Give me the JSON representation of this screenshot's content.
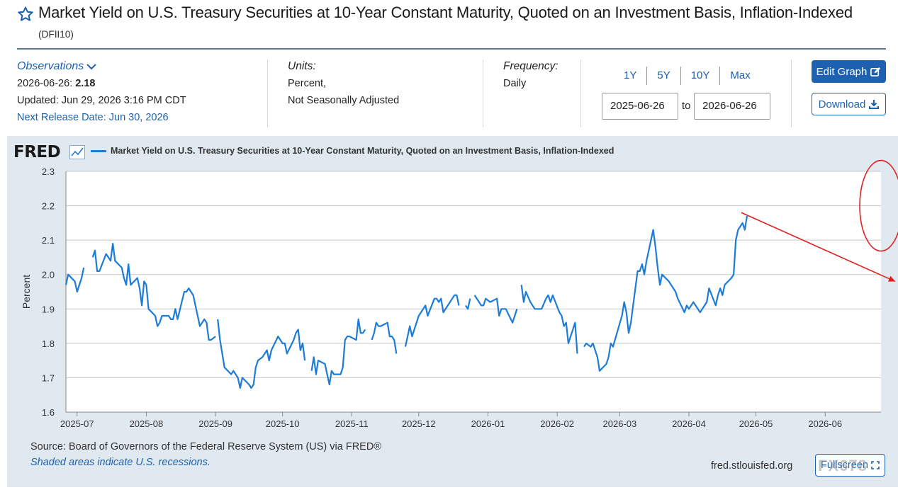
{
  "header": {
    "title": "Market Yield on U.S. Treasury Securities at 10-Year Constant Maturity, Quoted on an Investment Basis, Inflation-Indexed",
    "series_id": "(DFII10)"
  },
  "observations": {
    "label": "Observations",
    "date": "2026-06-26:",
    "value": "2.18",
    "updated": "Updated: Jun 29, 2026 3:16 PM CDT",
    "next_release": "Next Release Date: Jun 30, 2026"
  },
  "units": {
    "label": "Units:",
    "line1": "Percent,",
    "line2": "Not Seasonally Adjusted"
  },
  "frequency": {
    "label": "Frequency:",
    "value": "Daily"
  },
  "ranges": [
    "1Y",
    "5Y",
    "10Y",
    "Max"
  ],
  "date_range": {
    "start": "2025-06-26",
    "end": "2026-06-26",
    "separator": "to"
  },
  "buttons": {
    "edit_graph": "Edit Graph",
    "download": "Download",
    "fullscreen": "Fullscreen"
  },
  "graph": {
    "logo": "FRED",
    "legend": "Market Yield on U.S. Treasury Securities at 10-Year Constant Maturity, Quoted on an Investment Basis, Inflation-Indexed",
    "source": "Source: Board of Governors of the Federal Reserve System (US) via FRED®",
    "shaded_note": "Shaded areas indicate U.S. recessions.",
    "site": "fred.stlouisfed.org"
  },
  "watermark": "FX678",
  "colors": {
    "accent": "#1d61b0",
    "series": "#1d7cd6",
    "annotation": "#e02020",
    "panel": "#e1e9f0"
  },
  "chart_data": {
    "type": "line",
    "ylabel": "Percent",
    "ylim": [
      1.6,
      2.3
    ],
    "yticks": [
      "1.6",
      "1.7",
      "1.8",
      "1.9",
      "2.0",
      "2.1",
      "2.2",
      "2.3"
    ],
    "xlim": [
      "2025-06-26",
      "2026-06-26"
    ],
    "xticks": [
      "2025-07",
      "2025-08",
      "2025-09",
      "2025-10",
      "2025-11",
      "2025-12",
      "2026-01",
      "2026-02",
      "2026-03",
      "2026-04",
      "2026-05",
      "2026-06"
    ],
    "xtick_dates": [
      "2025-07-01",
      "2025-08-01",
      "2025-09-01",
      "2025-10-01",
      "2025-11-01",
      "2025-12-01",
      "2026-01-01",
      "2026-02-01",
      "2026-03-01",
      "2026-04-01",
      "2026-05-01",
      "2026-06-01"
    ],
    "grid": true,
    "series": [
      {
        "name": "Market Yield on U.S. Treasury Securities at 10-Year Constant Maturity, Quoted on an Investment Basis, Inflation-Indexed",
        "segments": [
          [
            [
              "2025-06-26",
              1.97
            ],
            [
              "2025-06-27",
              2.0
            ],
            [
              "2025-06-30",
              1.98
            ],
            [
              "2025-07-01",
              1.95
            ],
            [
              "2025-07-03",
              1.99
            ],
            [
              "2025-07-04",
              2.02
            ]
          ],
          [
            [
              "2025-07-08",
              2.05
            ],
            [
              "2025-07-09",
              2.07
            ],
            [
              "2025-07-10",
              2.01
            ],
            [
              "2025-07-11",
              2.01
            ],
            [
              "2025-07-14",
              2.06
            ],
            [
              "2025-07-15",
              2.05
            ],
            [
              "2025-07-16",
              2.04
            ],
            [
              "2025-07-17",
              2.09
            ],
            [
              "2025-07-18",
              2.04
            ],
            [
              "2025-07-21",
              2.02
            ],
            [
              "2025-07-22",
              1.99
            ],
            [
              "2025-07-23",
              1.97
            ],
            [
              "2025-07-24",
              2.03
            ],
            [
              "2025-07-25",
              1.97
            ],
            [
              "2025-07-28",
              1.99
            ],
            [
              "2025-07-29",
              1.96
            ],
            [
              "2025-07-30",
              1.91
            ],
            [
              "2025-07-31",
              1.98
            ],
            [
              "2025-08-01",
              1.97
            ],
            [
              "2025-08-02",
              1.9
            ],
            [
              "2025-08-05",
              1.88
            ],
            [
              "2025-08-06",
              1.85
            ],
            [
              "2025-08-07",
              1.86
            ],
            [
              "2025-08-08",
              1.88
            ],
            [
              "2025-08-11",
              1.88
            ],
            [
              "2025-08-12",
              1.87
            ],
            [
              "2025-08-13",
              1.87
            ],
            [
              "2025-08-14",
              1.9
            ],
            [
              "2025-08-15",
              1.87
            ],
            [
              "2025-08-18",
              1.95
            ],
            [
              "2025-08-19",
              1.95
            ],
            [
              "2025-08-20",
              1.96
            ],
            [
              "2025-08-21",
              1.95
            ],
            [
              "2025-08-22",
              1.94
            ],
            [
              "2025-08-25",
              1.85
            ],
            [
              "2025-08-26",
              1.86
            ],
            [
              "2025-08-27",
              1.87
            ],
            [
              "2025-08-28",
              1.86
            ],
            [
              "2025-08-29",
              1.81
            ],
            [
              "2025-08-30",
              1.81
            ],
            [
              "2025-09-01",
              1.82
            ]
          ],
          [
            [
              "2025-09-02",
              1.87
            ],
            [
              "2025-09-03",
              1.81
            ],
            [
              "2025-09-05",
              1.73
            ],
            [
              "2025-09-08",
              1.71
            ],
            [
              "2025-09-09",
              1.72
            ],
            [
              "2025-09-11",
              1.7
            ],
            [
              "2025-09-12",
              1.67
            ],
            [
              "2025-09-13",
              1.7
            ],
            [
              "2025-09-16",
              1.68
            ],
            [
              "2025-09-17",
              1.67
            ],
            [
              "2025-09-18",
              1.68
            ],
            [
              "2025-09-19",
              1.73
            ],
            [
              "2025-09-20",
              1.75
            ],
            [
              "2025-09-22",
              1.76
            ],
            [
              "2025-09-24",
              1.78
            ],
            [
              "2025-09-25",
              1.75
            ],
            [
              "2025-09-26",
              1.78
            ],
            [
              "2025-09-29",
              1.82
            ],
            [
              "2025-09-30",
              1.81
            ],
            [
              "2025-10-01",
              1.8
            ],
            [
              "2025-10-02",
              1.8
            ],
            [
              "2025-10-03",
              1.77
            ],
            [
              "2025-10-06",
              1.81
            ],
            [
              "2025-10-07",
              1.83
            ],
            [
              "2025-10-08",
              1.84
            ],
            [
              "2025-10-09",
              1.78
            ],
            [
              "2025-10-10",
              1.8
            ],
            [
              "2025-10-11",
              1.75
            ]
          ],
          [
            [
              "2025-10-14",
              1.72
            ],
            [
              "2025-10-15",
              1.76
            ],
            [
              "2025-10-16",
              1.71
            ],
            [
              "2025-10-17",
              1.75
            ],
            [
              "2025-10-20",
              1.74
            ],
            [
              "2025-10-21",
              1.71
            ],
            [
              "2025-10-22",
              1.68
            ],
            [
              "2025-10-23",
              1.72
            ],
            [
              "2025-10-24",
              1.71
            ],
            [
              "2025-10-27",
              1.71
            ],
            [
              "2025-10-28",
              1.73
            ],
            [
              "2025-10-29",
              1.81
            ],
            [
              "2025-10-30",
              1.82
            ],
            [
              "2025-10-31",
              1.82
            ],
            [
              "2025-11-03",
              1.81
            ],
            [
              "2025-11-04",
              1.87
            ],
            [
              "2025-11-05",
              1.83
            ],
            [
              "2025-11-06",
              1.83
            ],
            [
              "2025-11-07",
              1.84
            ]
          ],
          [
            [
              "2025-11-10",
              1.81
            ],
            [
              "2025-11-11",
              1.83
            ],
            [
              "2025-11-12",
              1.86
            ],
            [
              "2025-11-13",
              1.85
            ],
            [
              "2025-11-14",
              1.85
            ],
            [
              "2025-11-17",
              1.86
            ],
            [
              "2025-11-18",
              1.82
            ],
            [
              "2025-11-19",
              1.82
            ],
            [
              "2025-11-20",
              1.81
            ],
            [
              "2025-11-21",
              1.77
            ]
          ],
          [
            [
              "2025-11-25",
              1.79
            ],
            [
              "2025-11-26",
              1.82
            ],
            [
              "2025-11-27",
              1.85
            ],
            [
              "2025-11-28",
              1.82
            ],
            [
              "2025-12-01",
              1.88
            ],
            [
              "2025-12-02",
              1.89
            ],
            [
              "2025-12-03",
              1.9
            ],
            [
              "2025-12-04",
              1.91
            ],
            [
              "2025-12-05",
              1.88
            ],
            [
              "2025-12-08",
              1.93
            ],
            [
              "2025-12-09",
              1.93
            ],
            [
              "2025-12-10",
              1.92
            ],
            [
              "2025-12-11",
              1.93
            ],
            [
              "2025-12-12",
              1.89
            ],
            [
              "2025-12-15",
              1.92
            ],
            [
              "2025-12-16",
              1.93
            ],
            [
              "2025-12-17",
              1.94
            ],
            [
              "2025-12-18",
              1.94
            ],
            [
              "2025-12-19",
              1.91
            ]
          ],
          [
            [
              "2025-12-22",
              1.91
            ],
            [
              "2025-12-23",
              1.9
            ],
            [
              "2025-12-24",
              1.93
            ]
          ],
          [
            [
              "2025-12-26",
              1.94
            ],
            [
              "2025-12-29",
              1.91
            ],
            [
              "2025-12-30",
              1.91
            ],
            [
              "2025-12-31",
              1.93
            ],
            [
              "2026-01-02",
              1.92
            ],
            [
              "2026-01-05",
              1.93
            ],
            [
              "2026-01-06",
              1.88
            ],
            [
              "2026-01-07",
              1.9
            ],
            [
              "2026-01-08",
              1.9
            ],
            [
              "2026-01-09",
              1.9
            ],
            [
              "2026-01-12",
              1.86
            ],
            [
              "2026-01-13",
              1.88
            ],
            [
              "2026-01-14",
              1.9
            ]
          ],
          [
            [
              "2026-01-16",
              1.97
            ],
            [
              "2026-01-17",
              1.92
            ],
            [
              "2026-01-18",
              1.95
            ],
            [
              "2026-01-20",
              1.92
            ],
            [
              "2026-01-22",
              1.9
            ],
            [
              "2026-01-23",
              1.9
            ],
            [
              "2026-01-25",
              1.9
            ],
            [
              "2026-01-27",
              1.93
            ],
            [
              "2026-01-28",
              1.94
            ],
            [
              "2026-01-29",
              1.92
            ],
            [
              "2026-01-30",
              1.94
            ],
            [
              "2026-02-02",
              1.89
            ],
            [
              "2026-02-03",
              1.88
            ],
            [
              "2026-02-04",
              1.85
            ],
            [
              "2026-02-05",
              1.86
            ],
            [
              "2026-02-06",
              1.8
            ],
            [
              "2026-02-09",
              1.86
            ],
            [
              "2026-02-10",
              1.77
            ]
          ],
          [
            [
              "2026-02-13",
              1.79
            ],
            [
              "2026-02-14",
              1.8
            ],
            [
              "2026-02-16",
              1.79
            ],
            [
              "2026-02-17",
              1.8
            ],
            [
              "2026-02-18",
              1.78
            ],
            [
              "2026-02-19",
              1.76
            ],
            [
              "2026-02-20",
              1.72
            ],
            [
              "2026-02-23",
              1.74
            ],
            [
              "2026-02-24",
              1.76
            ],
            [
              "2026-02-25",
              1.8
            ],
            [
              "2026-02-26",
              1.79
            ],
            [
              "2026-03-02",
              1.88
            ],
            [
              "2026-03-03",
              1.92
            ],
            [
              "2026-03-04",
              1.89
            ],
            [
              "2026-03-05",
              1.83
            ],
            [
              "2026-03-06",
              1.86
            ],
            [
              "2026-03-09",
              2.01
            ],
            [
              "2026-03-10",
              2.01
            ],
            [
              "2026-03-11",
              2.03
            ],
            [
              "2026-03-12",
              2.0
            ],
            [
              "2026-03-13",
              2.04
            ],
            [
              "2026-03-16",
              2.13
            ],
            [
              "2026-03-17",
              2.08
            ],
            [
              "2026-03-18",
              2.02
            ],
            [
              "2026-03-19",
              1.97
            ],
            [
              "2026-03-20",
              2.0
            ],
            [
              "2026-03-23",
              1.98
            ],
            [
              "2026-03-24",
              1.97
            ],
            [
              "2026-03-25",
              1.96
            ],
            [
              "2026-03-26",
              1.95
            ],
            [
              "2026-03-27",
              1.93
            ],
            [
              "2026-03-30",
              1.89
            ],
            [
              "2026-03-31",
              1.91
            ],
            [
              "2026-04-01",
              1.9
            ],
            [
              "2026-04-02",
              1.91
            ],
            [
              "2026-04-03",
              1.92
            ],
            [
              "2026-04-06",
              1.89
            ],
            [
              "2026-04-07",
              1.9
            ],
            [
              "2026-04-08",
              1.91
            ],
            [
              "2026-04-09",
              1.92
            ],
            [
              "2026-04-10",
              1.96
            ],
            [
              "2026-04-13",
              1.91
            ],
            [
              "2026-04-14",
              1.94
            ],
            [
              "2026-04-15",
              1.96
            ],
            [
              "2026-04-16",
              1.94
            ],
            [
              "2026-04-17",
              1.97
            ],
            [
              "2026-04-20",
              1.99
            ],
            [
              "2026-04-21",
              2.0
            ],
            [
              "2026-04-22",
              2.1
            ],
            [
              "2026-04-23",
              2.13
            ],
            [
              "2026-04-24",
              2.14
            ],
            [
              "2026-04-25",
              2.15
            ],
            [
              "2026-04-26",
              2.13
            ],
            [
              "2026-04-27",
              2.17
            ]
          ]
        ]
      }
    ]
  }
}
